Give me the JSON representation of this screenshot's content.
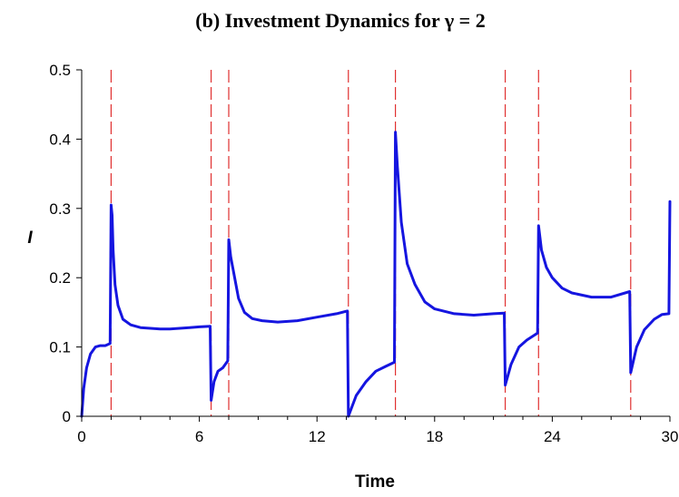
{
  "chart_data": {
    "type": "line",
    "title": "(b) Investment Dynamics for γ = 2",
    "xlabel": "Time",
    "ylabel": "I",
    "xlim": [
      0,
      30
    ],
    "ylim": [
      0,
      0.5
    ],
    "x_ticks": [
      "0",
      "6",
      "12",
      "18",
      "24",
      "30"
    ],
    "y_ticks": [
      "0",
      "0.1",
      "0.2",
      "0.3",
      "0.4",
      "0.5"
    ],
    "grid": false,
    "colors": {
      "series": "#1515e0",
      "vlines": "#e03030"
    },
    "vertical_dashed_lines": [
      1.5,
      6.6,
      7.5,
      13.6,
      16.0,
      21.6,
      23.3,
      28.0
    ],
    "series": [
      {
        "x": [
          0,
          0.1,
          0.25,
          0.45,
          0.7,
          0.95,
          1.2,
          1.45,
          1.5,
          1.55,
          1.6,
          1.7,
          1.85,
          2.1,
          2.5,
          3.0,
          3.5,
          4.0,
          4.5,
          5.0,
          5.5,
          6.0,
          6.55,
          6.6,
          6.75,
          6.95,
          7.2,
          7.45,
          7.5,
          7.6,
          7.8,
          8.0,
          8.3,
          8.7,
          9.2,
          10.0,
          11.0,
          12.0,
          13.0,
          13.55,
          13.6,
          14.0,
          14.5,
          15.0,
          15.5,
          15.95,
          16.0,
          16.1,
          16.3,
          16.6,
          17.0,
          17.5,
          18.0,
          19.0,
          20.0,
          21.0,
          21.55,
          21.6,
          21.9,
          22.3,
          22.7,
          23.25,
          23.3,
          23.45,
          23.7,
          24.0,
          24.5,
          25.0,
          26.0,
          27.0,
          27.95,
          28.0,
          28.3,
          28.7,
          29.2,
          29.6,
          29.95,
          30.0
        ],
        "y": [
          0.0,
          0.04,
          0.07,
          0.09,
          0.1,
          0.102,
          0.102,
          0.105,
          0.305,
          0.29,
          0.24,
          0.19,
          0.16,
          0.14,
          0.132,
          0.128,
          0.127,
          0.126,
          0.126,
          0.127,
          0.128,
          0.129,
          0.13,
          0.023,
          0.05,
          0.065,
          0.07,
          0.08,
          0.255,
          0.23,
          0.2,
          0.17,
          0.15,
          0.141,
          0.138,
          0.136,
          0.138,
          0.143,
          0.148,
          0.152,
          0.0,
          0.03,
          0.05,
          0.065,
          0.072,
          0.078,
          0.41,
          0.36,
          0.28,
          0.22,
          0.19,
          0.165,
          0.155,
          0.148,
          0.146,
          0.148,
          0.149,
          0.045,
          0.075,
          0.1,
          0.11,
          0.12,
          0.275,
          0.24,
          0.215,
          0.2,
          0.185,
          0.178,
          0.172,
          0.172,
          0.18,
          0.063,
          0.1,
          0.125,
          0.14,
          0.147,
          0.148,
          0.31
        ]
      }
    ]
  }
}
